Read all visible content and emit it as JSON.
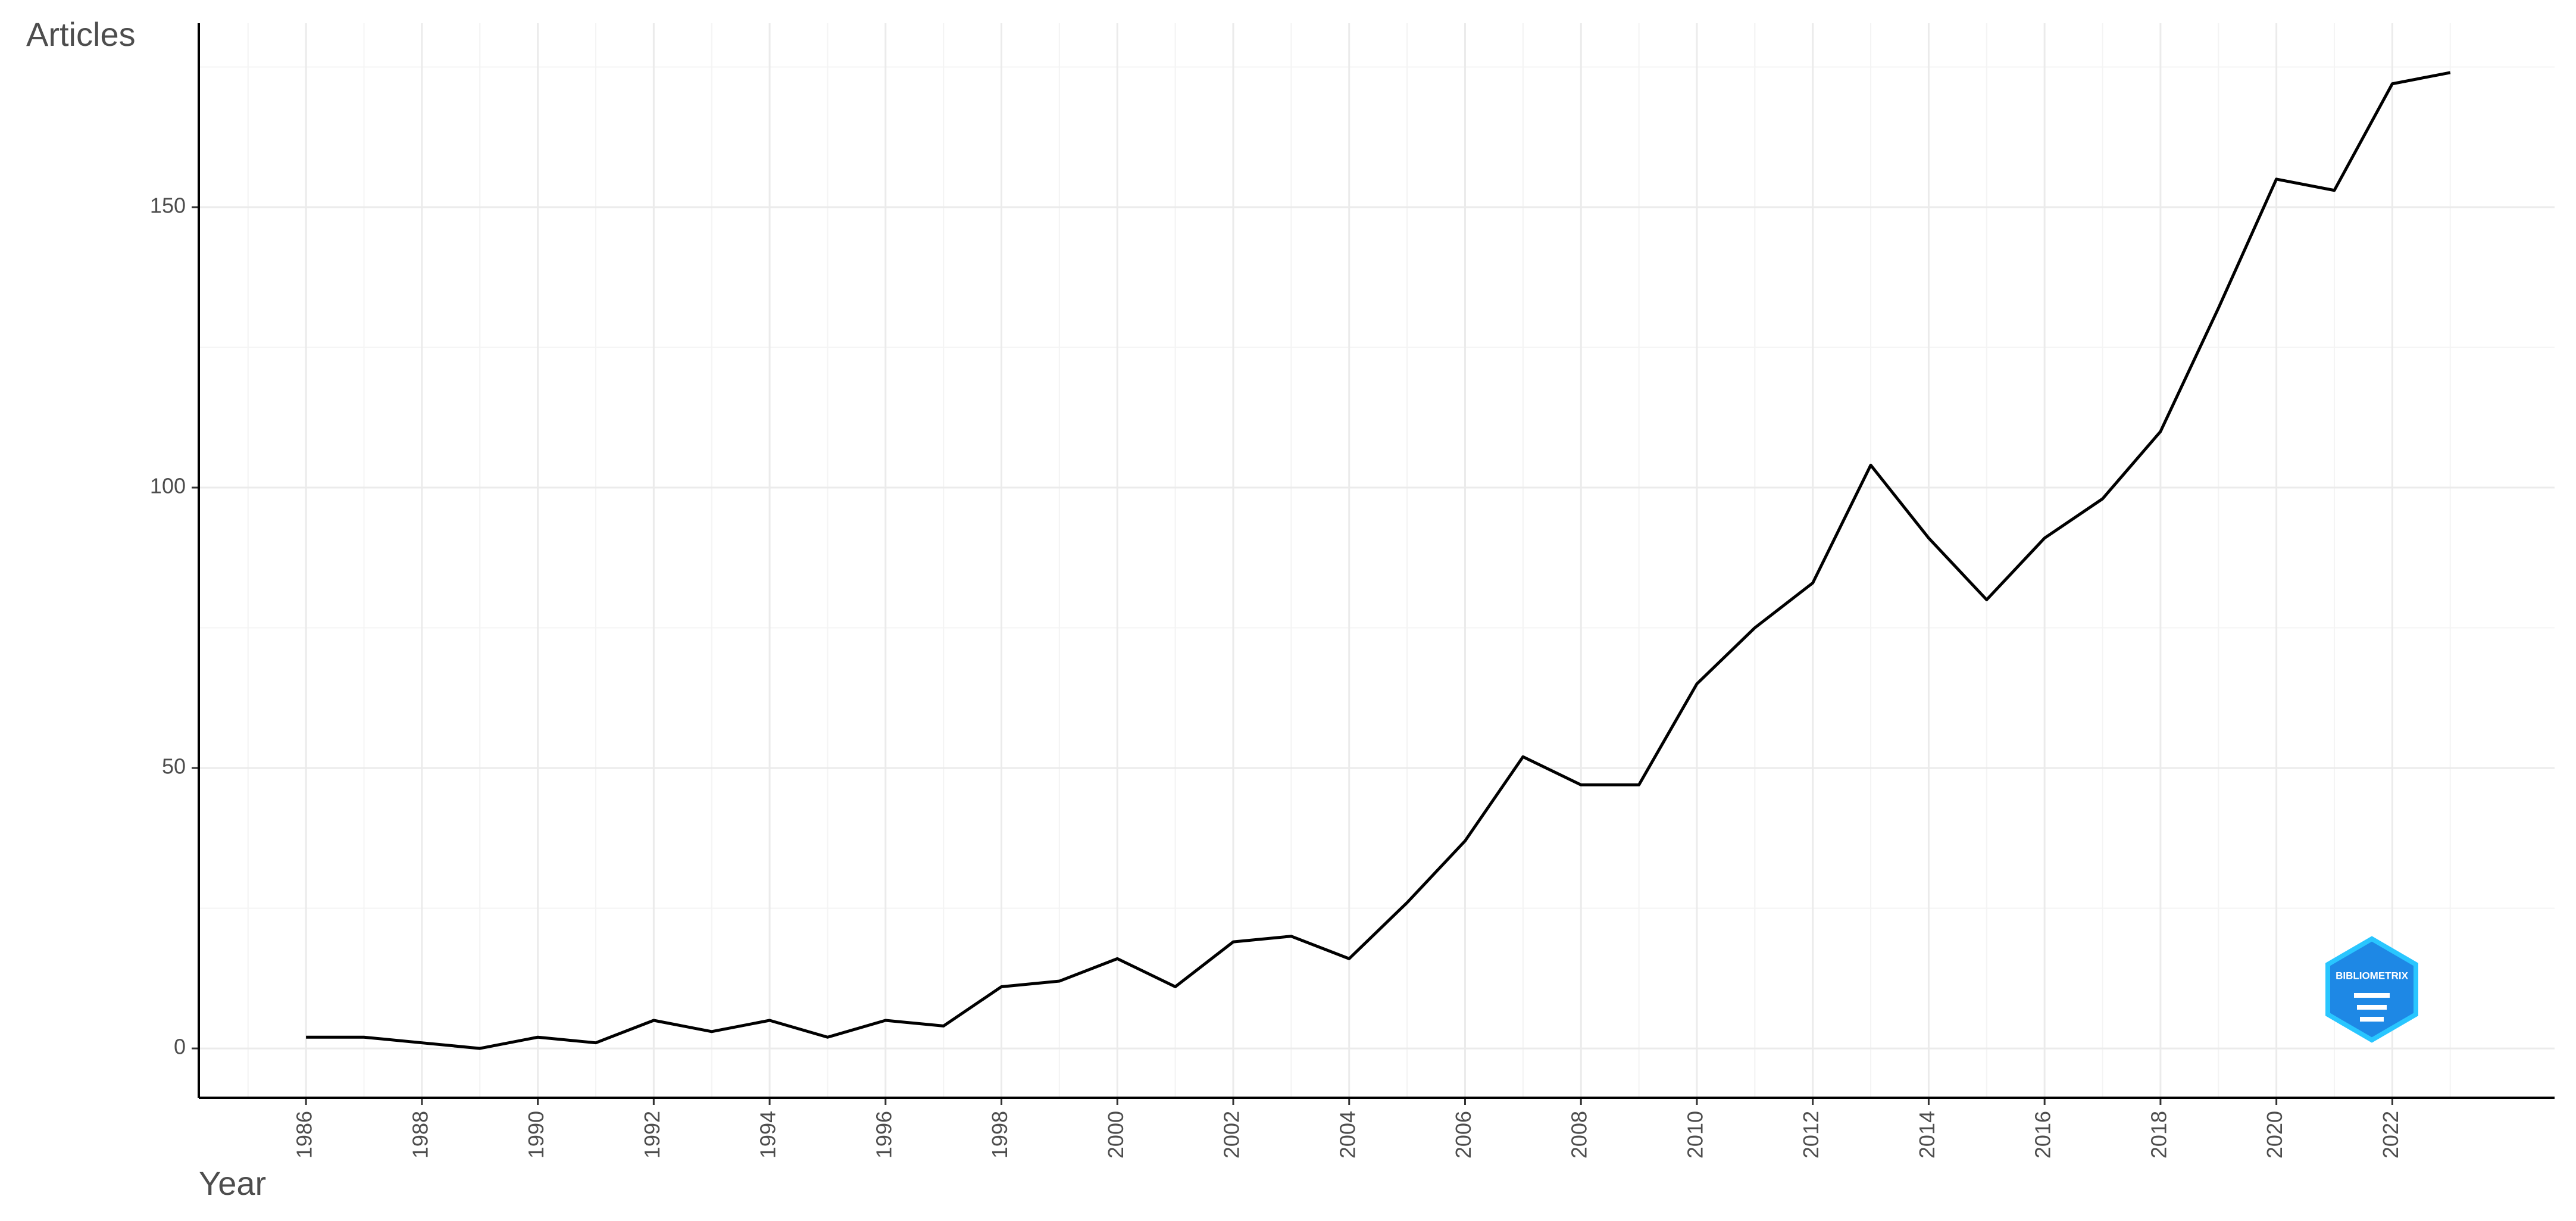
{
  "chart_data": {
    "type": "line",
    "y_label": "Articles",
    "x_label": "Year",
    "x": [
      1986,
      1987,
      1988,
      1989,
      1990,
      1991,
      1992,
      1993,
      1994,
      1995,
      1996,
      1997,
      1998,
      1999,
      2000,
      2001,
      2002,
      2003,
      2004,
      2005,
      2006,
      2007,
      2008,
      2009,
      2010,
      2011,
      2012,
      2013,
      2014,
      2015,
      2016,
      2017,
      2018,
      2019,
      2020,
      2021,
      2022,
      2023
    ],
    "series": [
      {
        "name": "Articles",
        "color": "#000000",
        "values": [
          2,
          2,
          1,
          0,
          2,
          1,
          5,
          3,
          5,
          2,
          5,
          4,
          11,
          12,
          16,
          11,
          19,
          20,
          16,
          26,
          37,
          52,
          47,
          47,
          65,
          75,
          83,
          104,
          91,
          80,
          91,
          98,
          110,
          132,
          155,
          153,
          172,
          174
        ]
      }
    ],
    "xlim": [
      1984.15,
      2024.8
    ],
    "ylim": [
      -8.8,
      182.8
    ],
    "xticks": [
      1986,
      1988,
      1990,
      1992,
      1994,
      1996,
      1998,
      2000,
      2002,
      2004,
      2006,
      2008,
      2010,
      2012,
      2014,
      2016,
      2018,
      2020,
      2022
    ],
    "yticks": [
      0,
      50,
      100,
      150
    ],
    "grid": true,
    "watermark": "BIBLIOMETRIX"
  }
}
